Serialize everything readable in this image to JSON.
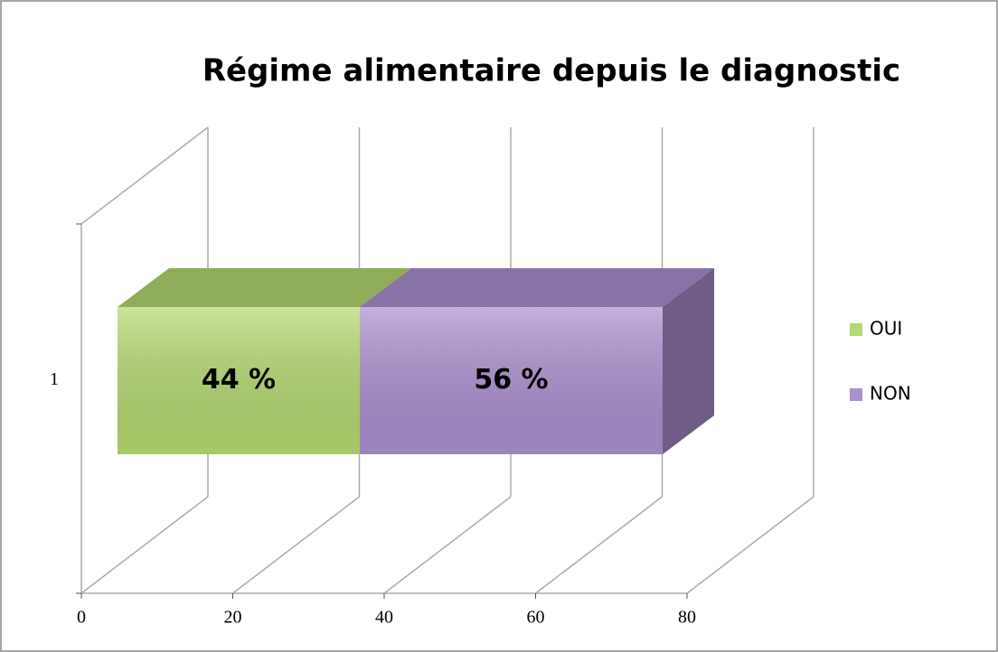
{
  "chart_data": {
    "type": "bar3d_stacked_horizontal",
    "title": "Régime alimentaire depuis le diagnostic",
    "categories": [
      "1"
    ],
    "series": [
      {
        "name": "OUI",
        "color": "#b5d970",
        "values": [
          32
        ],
        "value_labels": [
          "44 %"
        ]
      },
      {
        "name": "NON",
        "color": "#ab90d0",
        "values": [
          40
        ],
        "value_labels": [
          "56 %"
        ]
      }
    ],
    "xlim": [
      0,
      80
    ],
    "xticks": [
      0,
      20,
      40,
      60,
      80
    ],
    "grid": true,
    "legend": "right"
  }
}
